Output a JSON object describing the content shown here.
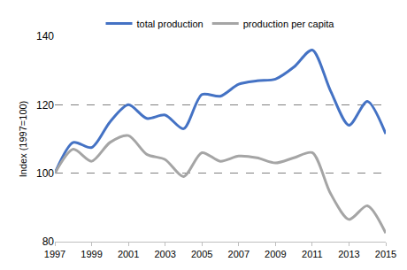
{
  "chart_data": {
    "type": "line",
    "y_label": "Index (1997=100)",
    "x": [
      1997,
      1998,
      1999,
      2000,
      2001,
      2002,
      2003,
      2004,
      2005,
      2006,
      2007,
      2008,
      2009,
      2010,
      2011,
      2012,
      2013,
      2014,
      2015
    ],
    "series": [
      {
        "name": "total production",
        "color": "#4472c4",
        "values": [
          100,
          109,
          107.5,
          115,
          120,
          116,
          117,
          113,
          123,
          122.5,
          126,
          127,
          127.5,
          131,
          136,
          124,
          114,
          121,
          111.5
        ]
      },
      {
        "name": "production per capita",
        "color": "#a5a5a5",
        "values": [
          100,
          107,
          103.5,
          109,
          111,
          105.5,
          104,
          99,
          106,
          103.5,
          105,
          104.5,
          103,
          104.5,
          106,
          94,
          86.5,
          90.5,
          82.5
        ]
      }
    ],
    "xlim": [
      1997,
      2015
    ],
    "xticks": [
      1997,
      1999,
      2001,
      2003,
      2005,
      2007,
      2009,
      2011,
      2013,
      2015
    ],
    "ylim": [
      80,
      140
    ],
    "yticks": [
      80,
      100,
      120,
      140
    ],
    "grid": true,
    "legend": "top",
    "line_style": "smooth"
  }
}
